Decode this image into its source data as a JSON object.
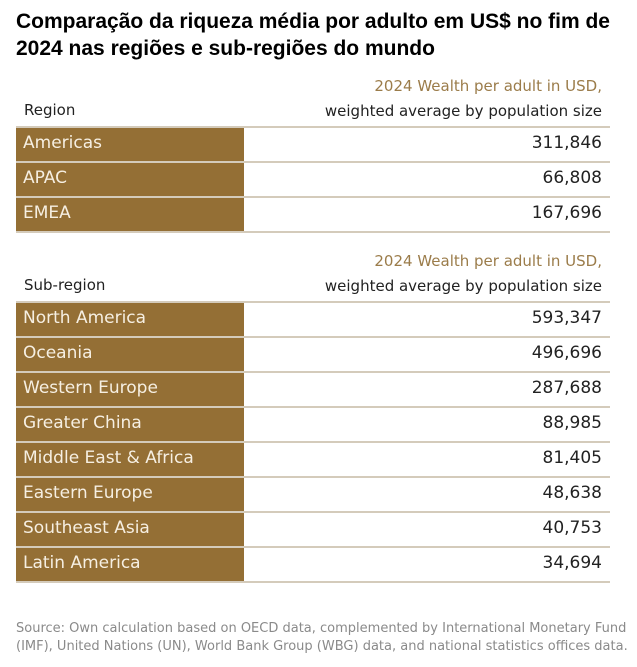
{
  "title": "Comparação da riqueza média por adulto em US$ no fim de 2024 nas regiões e sub-regiões do mundo",
  "regions": {
    "label": "Region",
    "header_line1": "2024 Wealth per adult in USD,",
    "header_line2": "weighted average by population size",
    "rows": [
      {
        "name": "Americas",
        "value": "311,846"
      },
      {
        "name": "APAC",
        "value": "66,808"
      },
      {
        "name": "EMEA",
        "value": "167,696"
      }
    ]
  },
  "subregions": {
    "label": "Sub-region",
    "header_line1": "2024 Wealth per adult in USD,",
    "header_line2": "weighted average by population size",
    "rows": [
      {
        "name": "North America",
        "value": "593,347"
      },
      {
        "name": "Oceania",
        "value": "496,696"
      },
      {
        "name": "Western Europe",
        "value": "287,688"
      },
      {
        "name": "Greater China",
        "value": "88,985"
      },
      {
        "name": "Middle East & Africa",
        "value": "81,405"
      },
      {
        "name": "Eastern Europe",
        "value": "48,638"
      },
      {
        "name": "Southeast Asia",
        "value": "40,753"
      },
      {
        "name": "Latin America",
        "value": "34,694"
      }
    ]
  },
  "source": "Source: Own calculation based on OECD data, complemented by International Monetary Fund (IMF), United Nations (UN), World Bank Group (WBG) data, and national statistics offices data.",
  "colors": {
    "accent": "#946f35"
  }
}
